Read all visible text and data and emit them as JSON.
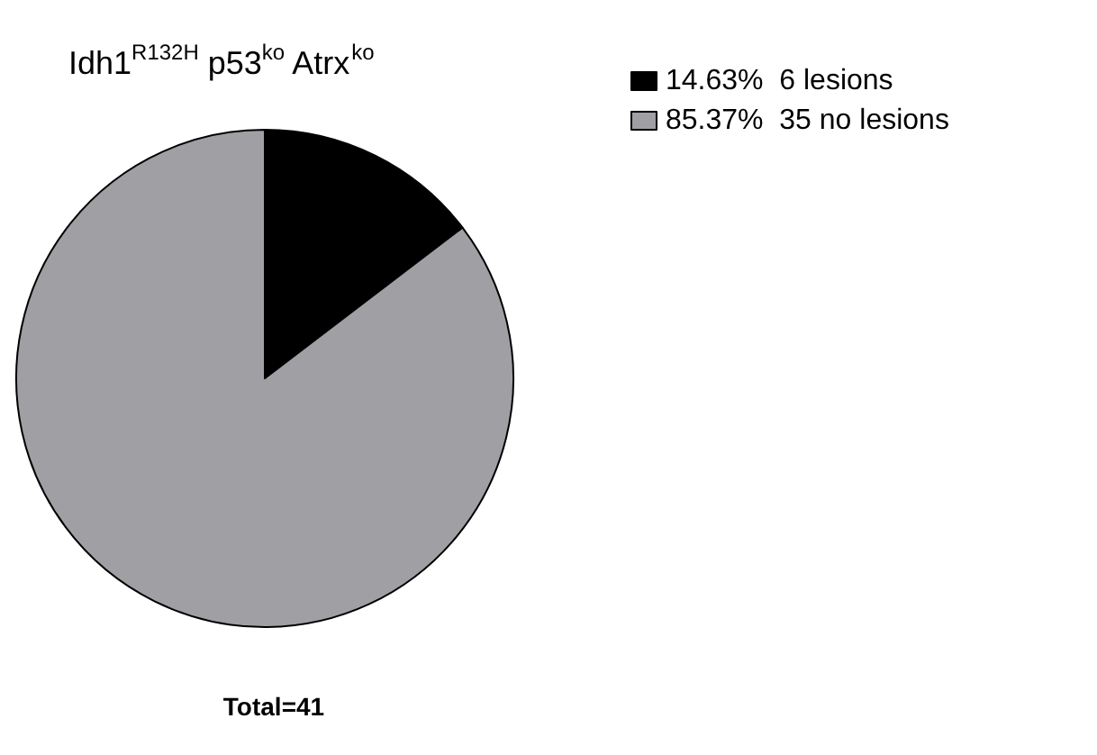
{
  "chart_data": {
    "type": "pie",
    "title": "Idh1$^{R132H}$ p53$^{ko}$ Atrx$^{ko}$",
    "categories": [
      "14.63%  6 lesions",
      "85.37%  35 no lesions"
    ],
    "values": [
      6,
      35
    ],
    "colors": [
      "#000000",
      "#a0a0a4"
    ],
    "legend": "top right",
    "annotations": [
      "Total=41"
    ]
  }
}
